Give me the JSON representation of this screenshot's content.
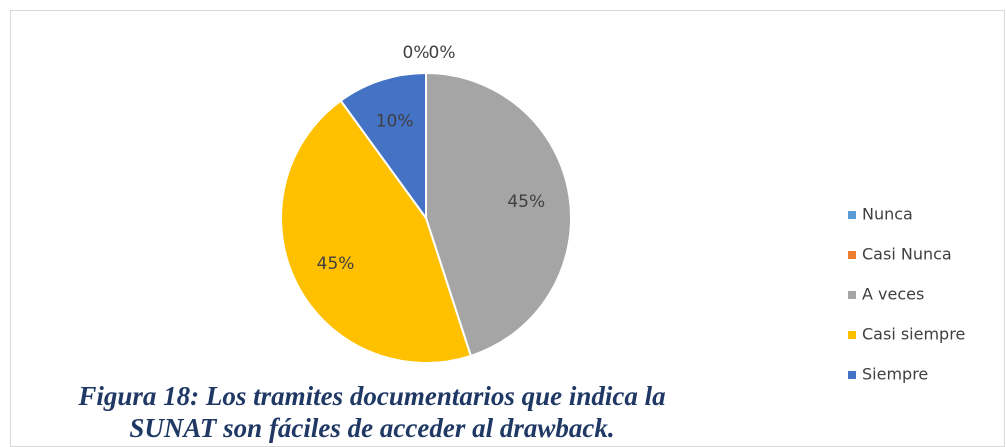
{
  "chart_data": {
    "type": "pie",
    "title": [
      "Figura 18: Los tramites documentarios que indica la",
      "SUNAT son fáciles de acceder al drawback."
    ],
    "categories": [
      "Nunca",
      "Casi Nunca",
      "A veces",
      "Casi siempre",
      "Siempre"
    ],
    "values": [
      0,
      0,
      45,
      45,
      10
    ],
    "value_labels": [
      "0%",
      "0%",
      "45%",
      "45%",
      "10%"
    ],
    "colors": [
      "#5b9bd5",
      "#ed7d31",
      "#a5a5a5",
      "#ffc000",
      "#4472c4"
    ],
    "legend": "right"
  }
}
